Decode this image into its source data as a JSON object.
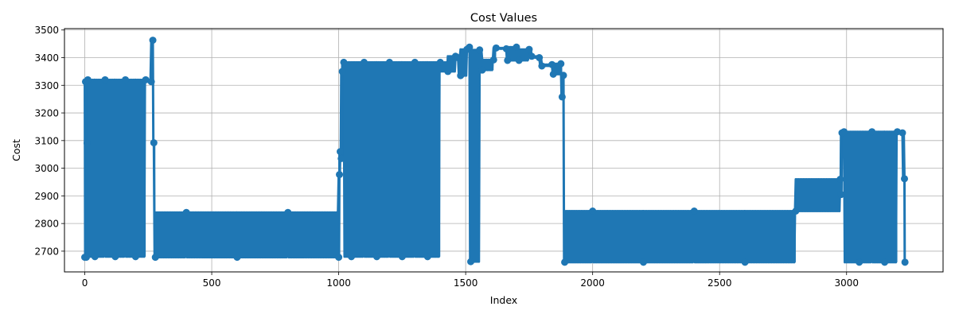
{
  "chart_data": {
    "type": "line",
    "title": "Cost Values",
    "xlabel": "Index",
    "ylabel": "Cost",
    "xlim": [
      -80,
      3380
    ],
    "ylim": [
      2625,
      3505
    ],
    "xticks": [
      0,
      500,
      1000,
      1500,
      2000,
      2500,
      3000
    ],
    "yticks": [
      2700,
      2800,
      2900,
      3000,
      3100,
      3200,
      3300,
      3400,
      3500
    ],
    "grid": true,
    "legend": "none",
    "color": "#1f77b4",
    "marker": "circle",
    "series": [
      {
        "x": [
          0,
          3,
          6,
          9,
          12,
          40,
          80,
          120,
          160,
          200,
          240,
          262,
          268,
          272,
          278,
          400,
          600,
          800,
          1000,
          1003,
          1006,
          1010,
          1014,
          1020,
          1050,
          1100,
          1150,
          1200,
          1250,
          1300,
          1350,
          1400,
          1430,
          1460,
          1470,
          1480,
          1505,
          1515,
          1520,
          1555,
          1565,
          1610,
          1620,
          1660,
          1665,
          1700,
          1710,
          1750,
          1760,
          1790,
          1800,
          1840,
          1845,
          1875,
          1880,
          1885,
          1890,
          2000,
          2200,
          2400,
          2600,
          2800,
          2975,
          2978,
          2982,
          2990,
          3050,
          3100,
          3150,
          3200,
          3220,
          3228,
          3230
        ],
        "y": [
          2678,
          3313,
          2678,
          3091,
          3320,
          2680,
          3320,
          2680,
          3320,
          2680,
          3320,
          3313,
          3463,
          3092,
          2678,
          2840,
          2678,
          2840,
          2678,
          2977,
          3060,
          3035,
          3350,
          3383,
          2680,
          3383,
          2680,
          3383,
          2680,
          3383,
          2680,
          3383,
          3350,
          3405,
          3400,
          3335,
          3430,
          3438,
          2662,
          3428,
          3355,
          3392,
          3435,
          3432,
          3390,
          3438,
          3390,
          3430,
          3405,
          3400,
          3370,
          3375,
          3340,
          3378,
          3258,
          3336,
          2660,
          2845,
          2660,
          2845,
          2660,
          2845,
          2960,
          2905,
          3128,
          3132,
          2660,
          3132,
          2660,
          3132,
          3128,
          2962,
          2660
        ]
      }
    ]
  }
}
